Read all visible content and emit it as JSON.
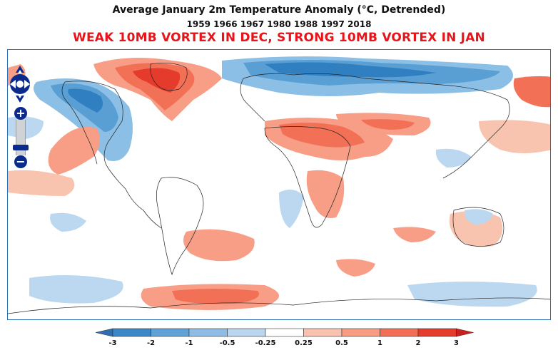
{
  "titles": {
    "main": "Average January 2m Temperature Anomaly (°C, Detrended)",
    "years": "1959 1966 1967 1980 1988 1997 2018",
    "subtitle": "WEAK 10MB VORTEX IN DEC, STRONG 10MB VORTEX IN JAN"
  },
  "map": {
    "colors": {
      "cold3": "#2f7fc1",
      "cold2": "#5a9fd4",
      "cold1": "#8cbfe6",
      "cold05": "#bcd8f0",
      "warm05": "#f8c4b0",
      "warm1": "#f89e86",
      "warm2": "#f27056",
      "warm3": "#e43b2c",
      "coast": "#222222",
      "frame": "#2f6fb4"
    },
    "controls": {
      "zoom_in": "+",
      "zoom_out": "−",
      "pan_icon": "pan-arrows-icon"
    }
  },
  "legend": {
    "labels": [
      "-3",
      "-2",
      "-1",
      "-0.5",
      "-0.25",
      "0.25",
      "0.5",
      "1",
      "2",
      "3"
    ],
    "colors": [
      "#3a86c6",
      "#5fa2d6",
      "#8dbde4",
      "#bad6ee",
      "#ffffff",
      "#f9c2ae",
      "#f79b83",
      "#f26f55",
      "#e53b2b"
    ],
    "end_low": "#2f6fb0",
    "end_high": "#cc1f1f"
  }
}
